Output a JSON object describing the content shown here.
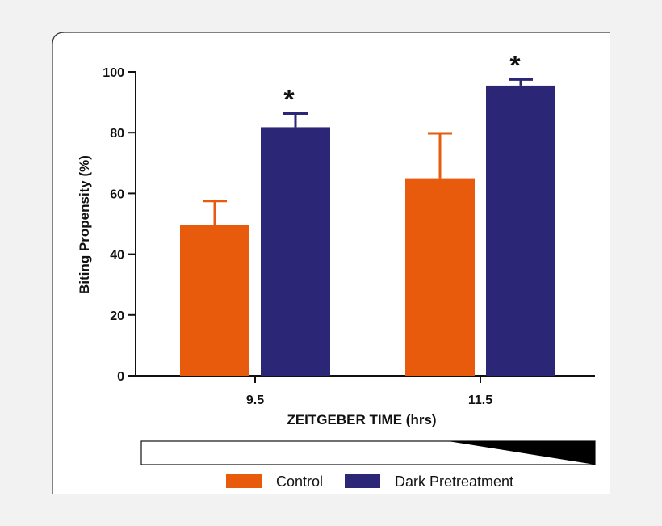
{
  "chart_data": {
    "type": "bar",
    "title": "",
    "xlabel": "ZEITGEBER TIME (hrs)",
    "ylabel": "Biting Propensity (%)",
    "ylim": [
      0,
      100
    ],
    "yticks": [
      "0",
      "20",
      "40",
      "60",
      "80",
      "100"
    ],
    "categories": [
      "9.5",
      "11.5"
    ],
    "series": [
      {
        "name": "Control",
        "color": "#e85a0c",
        "values": [
          49.5,
          65
        ],
        "errors": [
          8,
          14.8
        ]
      },
      {
        "name": "Dark Pretreatment",
        "color": "#2b2776",
        "values": [
          81.8,
          95.5
        ],
        "errors": [
          4.5,
          2
        ]
      }
    ],
    "annotations": [
      "*",
      "*"
    ],
    "legend_position": "bottom",
    "light_dark_bar": "light-to-dark gradient beginning late in the time course"
  }
}
